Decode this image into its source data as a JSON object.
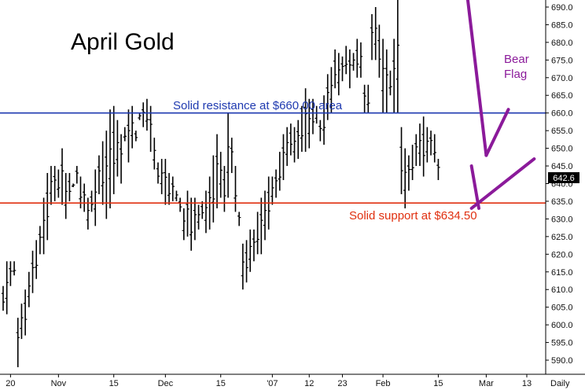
{
  "chart_data": {
    "type": "bar",
    "subtype": "ohlc",
    "title": "April Gold",
    "xlabel": "",
    "ylabel": "",
    "ylim": [
      586,
      692
    ],
    "grid": false,
    "y_axis_side": "right",
    "frequency_label": "Daily",
    "last_price_label": "642.6",
    "y_ticks": [
      590,
      595,
      600,
      605,
      610,
      615,
      620,
      625,
      630,
      635,
      640,
      645,
      650,
      655,
      660,
      665,
      670,
      675,
      680,
      685,
      690
    ],
    "x_ticks": [
      {
        "label": "20",
        "bar": 2
      },
      {
        "label": "Nov",
        "bar": 15
      },
      {
        "label": "15",
        "bar": 30
      },
      {
        "label": "Dec",
        "bar": 44
      },
      {
        "label": "15",
        "bar": 59
      },
      {
        "label": "'07",
        "bar": 73
      },
      {
        "label": "12",
        "bar": 83
      },
      {
        "label": "23",
        "bar": 92
      },
      {
        "label": "Feb",
        "bar": 103
      },
      {
        "label": "15",
        "bar": 118
      },
      {
        "label": "Mar",
        "bar": 131
      },
      {
        "label": "13",
        "bar": 142
      }
    ],
    "lows": [
      604,
      603,
      611,
      614,
      588,
      596,
      597,
      605,
      609,
      613,
      620,
      620,
      624,
      634,
      635,
      636,
      634,
      630,
      635,
      639,
      640,
      633,
      632,
      627,
      632,
      628,
      637,
      634,
      630,
      633,
      637,
      642,
      640,
      652,
      646,
      650,
      652,
      658,
      656,
      655,
      649,
      644,
      640,
      637,
      634,
      634,
      635,
      635,
      632,
      624,
      625,
      621,
      624,
      627,
      630,
      626,
      627,
      629,
      633,
      636,
      632,
      636,
      643,
      632,
      628,
      610,
      612,
      615,
      618,
      620,
      620,
      624,
      627,
      634,
      636,
      638,
      641,
      645,
      648,
      646,
      647,
      649,
      649,
      650,
      654,
      657,
      652,
      651,
      658,
      660,
      667,
      665,
      669,
      671,
      667,
      672,
      670,
      670,
      660,
      660,
      675,
      675,
      670,
      660,
      660,
      665,
      660,
      660,
      637,
      633,
      638,
      641,
      645,
      645,
      642,
      646,
      648,
      646,
      641
    ],
    "highs": [
      611,
      618,
      618,
      618,
      602,
      606,
      610,
      615,
      621,
      624,
      628,
      636,
      643,
      645,
      645,
      644,
      650,
      643,
      643,
      640,
      645,
      642,
      640,
      636,
      638,
      644,
      648,
      652,
      655,
      661,
      662,
      658,
      654,
      656,
      661,
      662,
      655,
      660,
      663,
      664,
      662,
      653,
      646,
      647,
      647,
      643,
      642,
      638,
      636,
      633,
      638,
      636,
      636,
      634,
      635,
      638,
      642,
      648,
      654,
      649,
      645,
      660,
      653,
      645,
      632,
      623,
      624,
      627,
      627,
      632,
      636,
      638,
      642,
      642,
      644,
      649,
      654,
      656,
      657,
      656,
      658,
      662,
      667,
      664,
      664,
      662,
      658,
      665,
      671,
      673,
      678,
      677,
      676,
      679,
      678,
      677,
      681,
      680,
      668,
      668,
      688,
      690,
      685,
      681,
      678,
      672,
      681,
      692,
      656,
      650,
      648,
      651,
      654,
      657,
      659,
      656,
      655,
      654,
      647
    ],
    "trendlines": [
      {
        "from": [
          126,
          692
        ],
        "to": [
          131,
          648
        ]
      },
      {
        "from": [
          131,
          648
        ],
        "to": [
          137,
          661
        ]
      },
      {
        "from": [
          127,
          645
        ],
        "to": [
          129,
          633
        ]
      },
      {
        "from": [
          127,
          633
        ],
        "to": [
          144,
          647
        ]
      }
    ],
    "hlines": [
      {
        "name": "resistance",
        "value": 660,
        "color": "#1f3ab0"
      },
      {
        "name": "support",
        "value": 634.5,
        "color": "#e03010"
      }
    ],
    "annotations": {
      "resistance_label": "Solid resistance at $660.00 area",
      "support_label": "Solid support at $634.50",
      "bear_flag_line1": "Bear",
      "bear_flag_line2": "Flag"
    }
  }
}
